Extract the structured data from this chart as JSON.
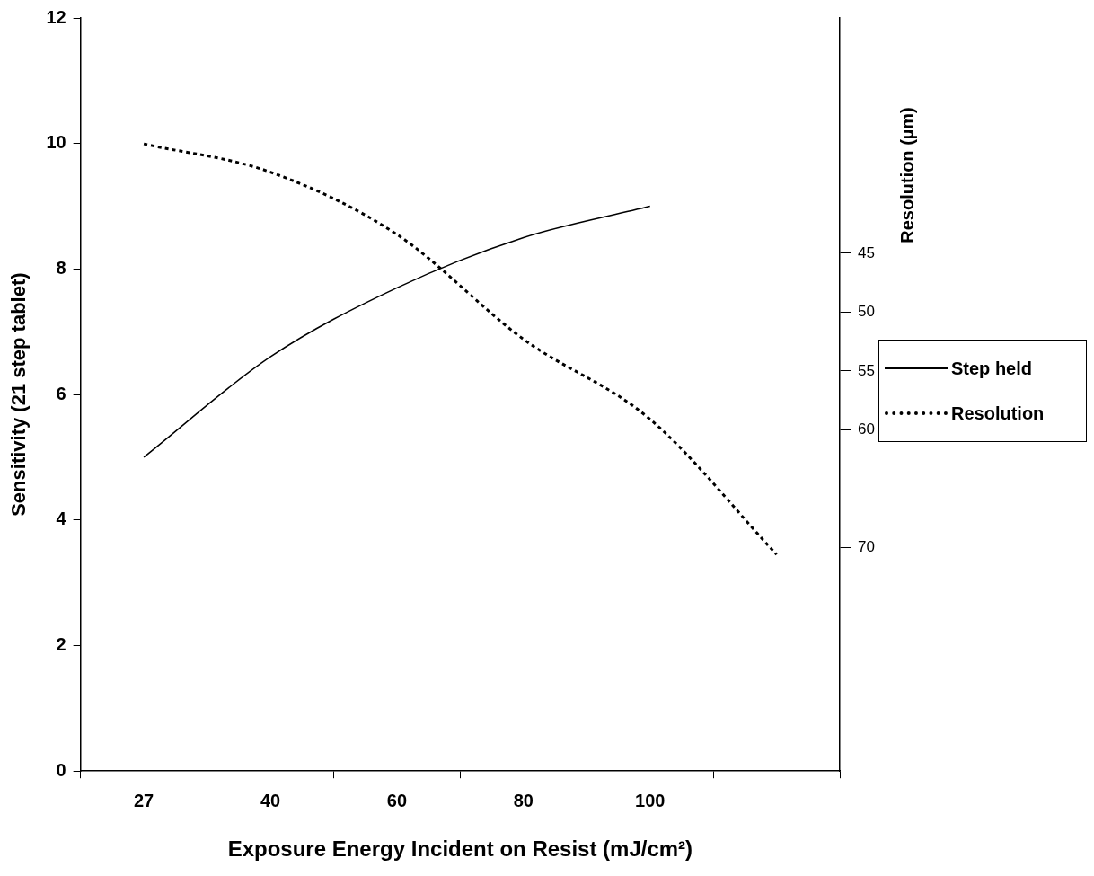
{
  "chart_data": {
    "type": "line",
    "xlabel": "Exposure Energy Incident on Resist (mJ/cm²)",
    "ylabel": "Sensitivity (21 step tablet)",
    "y2label": "Resolution (µm)",
    "categories": [
      "27",
      "40",
      "60",
      "80",
      "100",
      null
    ],
    "ylim": [
      0,
      12
    ],
    "yticks": [
      0,
      2,
      4,
      6,
      8,
      10,
      12
    ],
    "y2lim": [
      89,
      25
    ],
    "y2ticks": [
      45,
      50,
      55,
      60,
      70
    ],
    "series": [
      {
        "name": "Step held",
        "color": "#000000",
        "line_style": "solid",
        "values": [
          5.0,
          6.6,
          7.7,
          8.5,
          9.0,
          null
        ]
      },
      {
        "name": "Resolution",
        "color": "#000000",
        "line_style": "dotted",
        "axis": "y2",
        "values": [
          35.7,
          38.1,
          43.4,
          52.3,
          59.1,
          70.6
        ]
      }
    ],
    "grid": false,
    "legend": "right",
    "marker": "none"
  }
}
